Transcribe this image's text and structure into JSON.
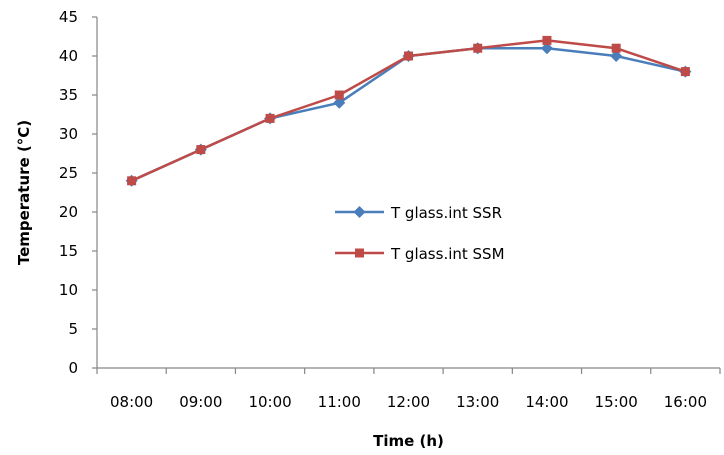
{
  "chart_data": {
    "type": "line",
    "title": "",
    "xlabel": "Time (h)",
    "ylabel": "Temperature (°C)",
    "categories": [
      "08:00",
      "09:00",
      "10:00",
      "11:00",
      "12:00",
      "13:00",
      "14:00",
      "15:00",
      "16:00"
    ],
    "ylim": [
      0,
      45
    ],
    "yticks": [
      0,
      5,
      10,
      15,
      20,
      25,
      30,
      35,
      40,
      45
    ],
    "grid": false,
    "legend_position": "center-right",
    "series": [
      {
        "name": "T glass.int SSR",
        "color": "#4A7EBB",
        "marker": "diamond",
        "values": [
          24,
          28,
          32,
          34,
          40,
          41,
          41,
          40,
          38
        ]
      },
      {
        "name": "T glass.int SSM",
        "color": "#BE4B48",
        "marker": "square",
        "values": [
          24,
          28,
          32,
          35,
          40,
          41,
          42,
          41,
          38
        ]
      }
    ]
  }
}
